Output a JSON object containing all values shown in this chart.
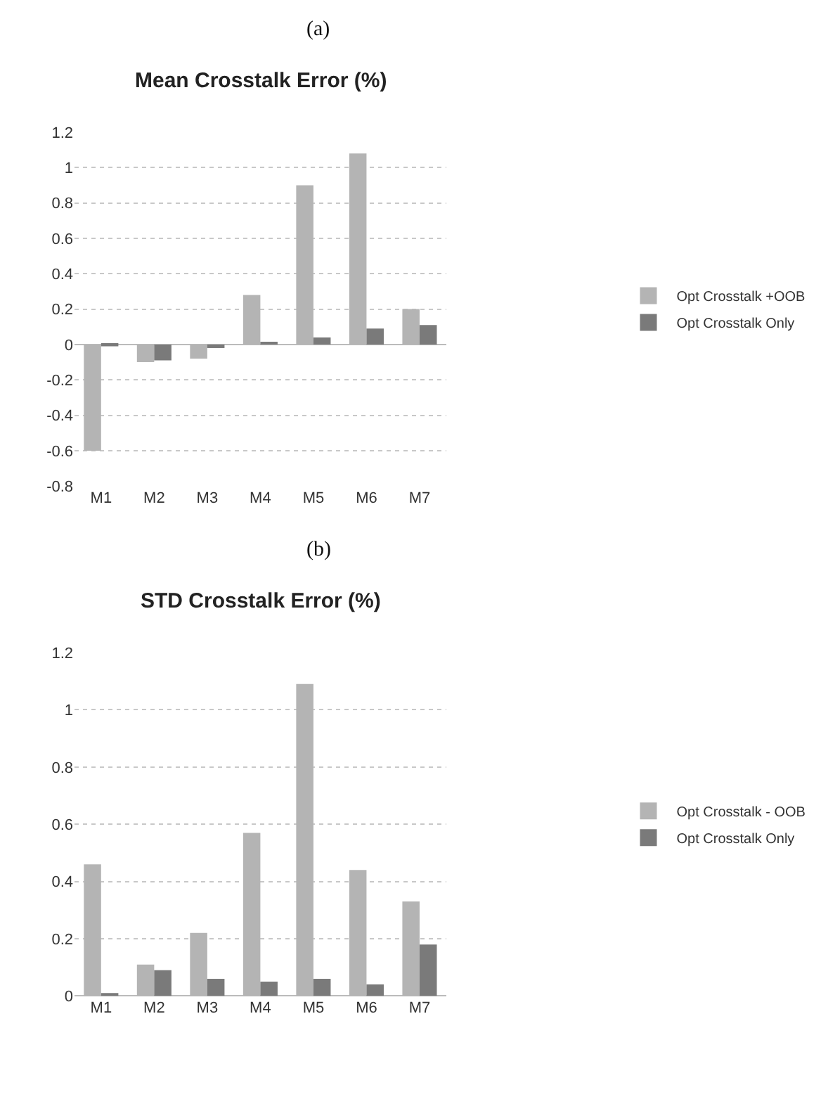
{
  "chart_data": [
    {
      "type": "bar",
      "title": "Mean Crosstalk Error (%)",
      "annotations": [
        "(a)"
      ],
      "categories": [
        "M1",
        "M2",
        "M3",
        "M4",
        "M5",
        "M6",
        "M7"
      ],
      "series": [
        {
          "name": "Opt Crosstalk +OOB",
          "color": "#b4b4b4",
          "values": [
            -0.6,
            -0.1,
            -0.08,
            0.28,
            0.9,
            1.08,
            0.2
          ]
        },
        {
          "name": "Opt Crosstalk Only",
          "color": "#7a7a7a",
          "values": [
            -0.01,
            -0.09,
            -0.02,
            0.01,
            0.04,
            0.09,
            0.11
          ]
        }
      ],
      "ylim": [
        -0.8,
        1.2
      ],
      "yticks": [
        -0.8,
        -0.6,
        -0.4,
        -0.2,
        0,
        0.2,
        0.4,
        0.6,
        0.8,
        1,
        1.2
      ],
      "grid": "y",
      "legend": "right"
    },
    {
      "type": "bar",
      "title": "STD Crosstalk Error (%)",
      "annotations": [
        "(b)"
      ],
      "categories": [
        "M1",
        "M2",
        "M3",
        "M4",
        "M5",
        "M6",
        "M7"
      ],
      "series": [
        {
          "name": "Opt Crosstalk - OOB",
          "color": "#b4b4b4",
          "values": [
            0.46,
            0.11,
            0.22,
            0.57,
            1.09,
            0.44,
            0.33
          ]
        },
        {
          "name": "Opt Crosstalk Only",
          "color": "#7a7a7a",
          "values": [
            0.01,
            0.09,
            0.06,
            0.05,
            0.06,
            0.04,
            0.18
          ]
        }
      ],
      "ylim": [
        0,
        1.2
      ],
      "yticks": [
        0,
        0.2,
        0.4,
        0.6,
        0.8,
        1,
        1.2
      ],
      "grid": "y",
      "legend": "right"
    }
  ]
}
